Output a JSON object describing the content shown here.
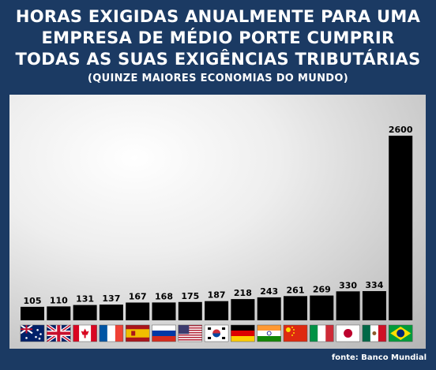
{
  "title_lines": [
    "HORAS EXIGIDAS ANUALMENTE PARA UMA",
    "EMPRESA DE MÉDIO PORTE CUMPRIR",
    "TODAS AS SUAS EXIGÊNCIAS TRIBUTÁRIAS"
  ],
  "subtitle": "(QUINZE MAIORES ECONOMIAS DO MUNDO)",
  "source": "fonte: Banco Mundial",
  "colors": {
    "background": "#1b3a63",
    "bar": "#000000",
    "text": "#ffffff"
  },
  "chart_data": {
    "type": "bar",
    "categories": [
      "australia-flag",
      "uk-flag",
      "canada-flag",
      "france-flag",
      "spain-flag",
      "russia-flag",
      "usa-flag",
      "south-korea-flag",
      "germany-flag",
      "india-flag",
      "china-flag",
      "italy-flag",
      "japan-flag",
      "mexico-flag",
      "brazil-flag"
    ],
    "values": [
      105,
      110,
      131,
      137,
      167,
      168,
      175,
      187,
      218,
      243,
      261,
      269,
      330,
      334,
      2600
    ],
    "xlabel": "",
    "ylabel": "",
    "ylim": [
      0,
      2600
    ],
    "grid": false
  }
}
